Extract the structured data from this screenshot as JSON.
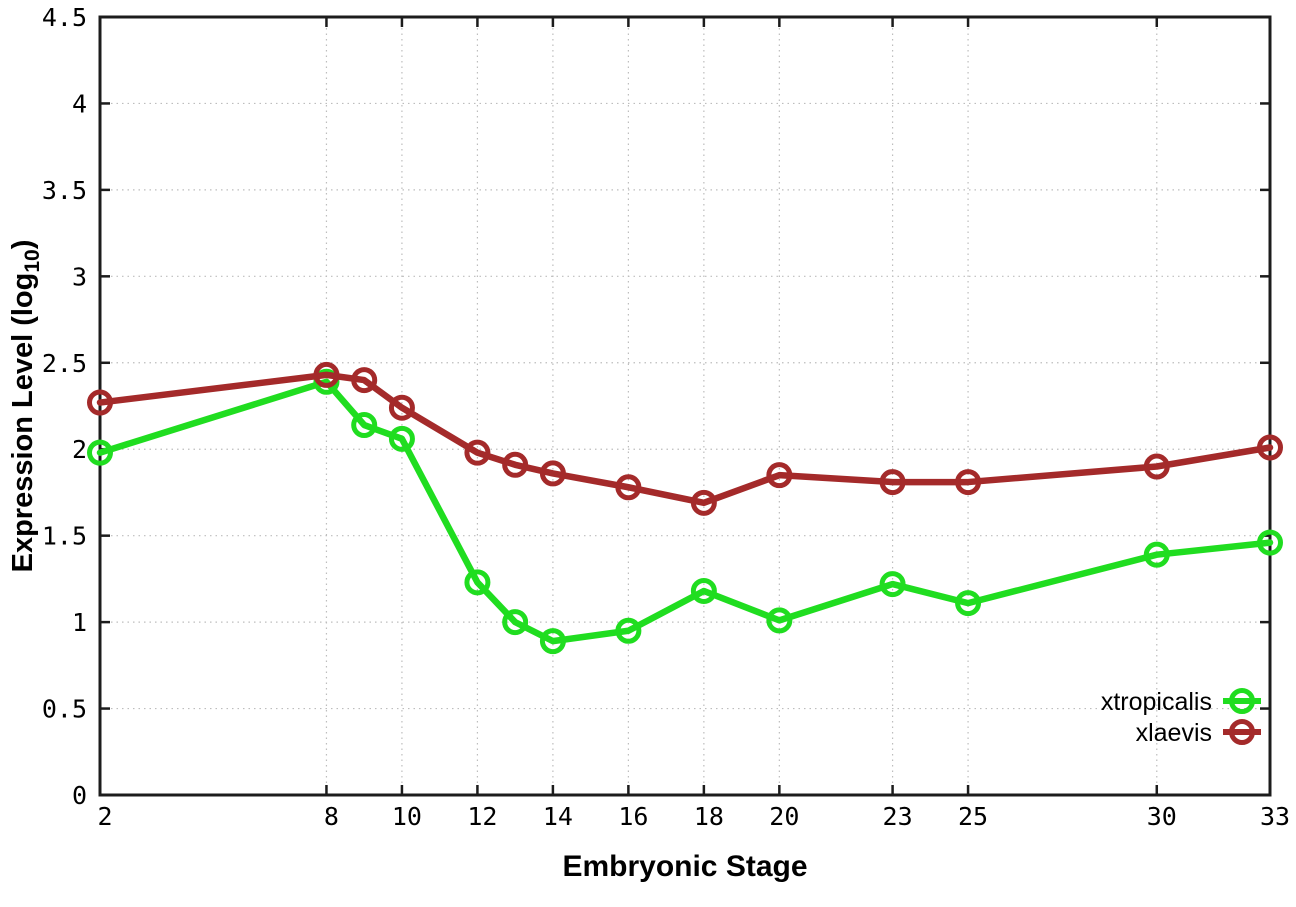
{
  "chart_data": {
    "type": "line",
    "title": "",
    "xlabel": "Embryonic Stage",
    "ylabel": "Expression Level (log10)",
    "ylabel_parts": {
      "prefix": "Expression Level (log",
      "subscript": "10",
      "suffix": ")"
    },
    "x": [
      2,
      8,
      9,
      10,
      12,
      13,
      14,
      16,
      18,
      20,
      23,
      25,
      30,
      33
    ],
    "series": [
      {
        "name": "xtropicalis",
        "color": "#20dd20",
        "values": [
          1.98,
          2.39,
          2.14,
          2.06,
          1.23,
          1.0,
          0.89,
          0.95,
          1.18,
          1.01,
          1.22,
          1.11,
          1.39,
          1.46
        ]
      },
      {
        "name": "xlaevis",
        "color": "#a42a2a",
        "values": [
          2.27,
          2.43,
          2.4,
          2.24,
          1.98,
          1.91,
          1.86,
          1.78,
          1.69,
          1.85,
          1.81,
          1.81,
          1.9,
          2.01
        ]
      }
    ],
    "xlim": [
      2,
      33
    ],
    "ylim": [
      0,
      4.5
    ],
    "x_ticks": {
      "values": [
        2,
        8,
        10,
        12,
        14,
        16,
        18,
        20,
        23,
        25,
        30,
        33
      ],
      "labels": [
        "2",
        "8",
        "10",
        "12",
        "14",
        "16",
        "18",
        "20",
        "23",
        "25",
        "30",
        "33"
      ]
    },
    "y_ticks": {
      "values": [
        0,
        0.5,
        1,
        1.5,
        2,
        2.5,
        3,
        3.5,
        4,
        4.5
      ],
      "labels": [
        "0",
        "0.5",
        "1",
        "1.5",
        "2",
        "2.5",
        "3",
        "3.5",
        "4",
        "4.5"
      ]
    },
    "grid": true,
    "legend_position": "bottom-right-inside",
    "legend": [
      "xtropicalis",
      "xlaevis"
    ],
    "marker": "open-circle",
    "styles": {
      "grid_color": "#bdbdbd",
      "axis_color": "#1c1c1c",
      "text_color": "#000000",
      "background": "#ffffff"
    }
  }
}
